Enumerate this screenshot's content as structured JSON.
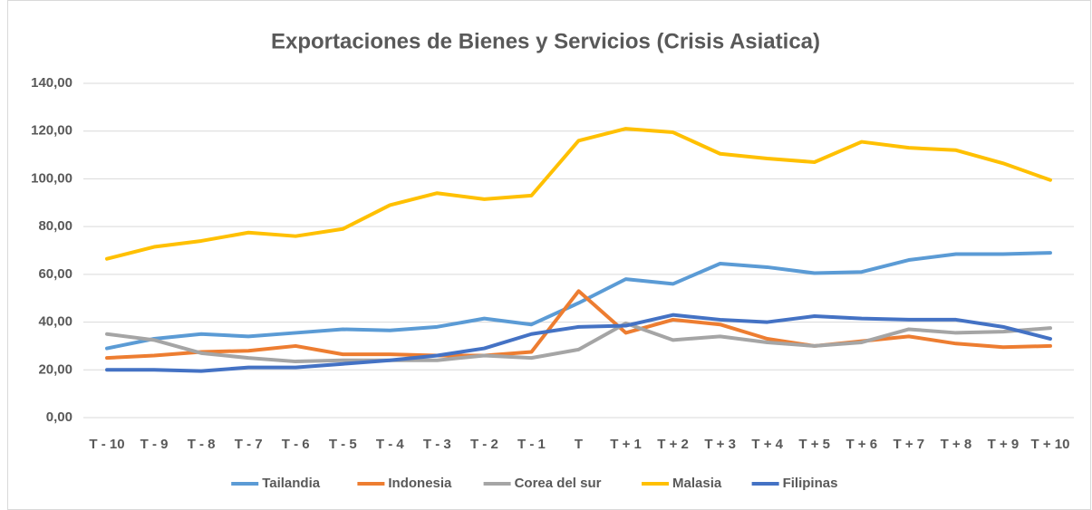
{
  "chart_data": {
    "type": "line",
    "title": "Exportaciones de Bienes y Servicios (Crisis Asiatica)",
    "categories": [
      "T - 10",
      "T - 9",
      "T - 8",
      "T - 7",
      "T - 6",
      "T - 5",
      "T - 4",
      "T - 3",
      "T - 2",
      "T - 1",
      "T",
      "T + 1",
      "T + 2",
      "T + 3",
      "T + 4",
      "T + 5",
      "T + 6",
      "T + 7",
      "T + 8",
      "T + 9",
      "T + 10"
    ],
    "series": [
      {
        "name": "Tailandia",
        "color": "#5b9bd5",
        "values": [
          29,
          33,
          35,
          34,
          35.5,
          37,
          36.5,
          38,
          41.5,
          39,
          48,
          58,
          56,
          64.5,
          63,
          60.5,
          61,
          66,
          68.5,
          68.5,
          69
        ]
      },
      {
        "name": "Indonesia",
        "color": "#ed7d31",
        "values": [
          25,
          26,
          27.5,
          28,
          30,
          26.5,
          26.5,
          26,
          26,
          27.5,
          53,
          35.5,
          41,
          39,
          33,
          30,
          32,
          34,
          31,
          29.5,
          30
        ]
      },
      {
        "name": "Corea del sur",
        "color": "#a5a5a5",
        "values": [
          35,
          32.5,
          27,
          25,
          23.5,
          24,
          24,
          24,
          26,
          25,
          28.5,
          39.5,
          32.5,
          34,
          31.5,
          30,
          31.5,
          37,
          35.5,
          36,
          37.5
        ]
      },
      {
        "name": "Malasia",
        "color": "#ffc000",
        "values": [
          66.5,
          71.5,
          74,
          77.5,
          76,
          79,
          89,
          94,
          91.5,
          93,
          116,
          121,
          119.5,
          110.5,
          108.5,
          107,
          115.5,
          113,
          112,
          106.5,
          99.5
        ]
      },
      {
        "name": "Filipinas",
        "color": "#4472c4",
        "values": [
          20,
          20,
          19.5,
          21,
          21,
          22.5,
          24,
          26,
          29,
          35,
          38,
          38.5,
          43,
          41,
          40,
          42.5,
          41.5,
          41,
          41,
          38,
          33
        ]
      }
    ],
    "ylim": [
      0,
      140
    ],
    "yticks": [
      {
        "value": 0,
        "label": "0,00"
      },
      {
        "value": 20,
        "label": "20,00"
      },
      {
        "value": 40,
        "label": "40,00"
      },
      {
        "value": 60,
        "label": "60,00"
      },
      {
        "value": 80,
        "label": "80,00"
      },
      {
        "value": 100,
        "label": "100,00"
      },
      {
        "value": 120,
        "label": "120,00"
      },
      {
        "value": 140,
        "label": "140,00"
      }
    ],
    "grid": true,
    "legend": "bottom"
  }
}
